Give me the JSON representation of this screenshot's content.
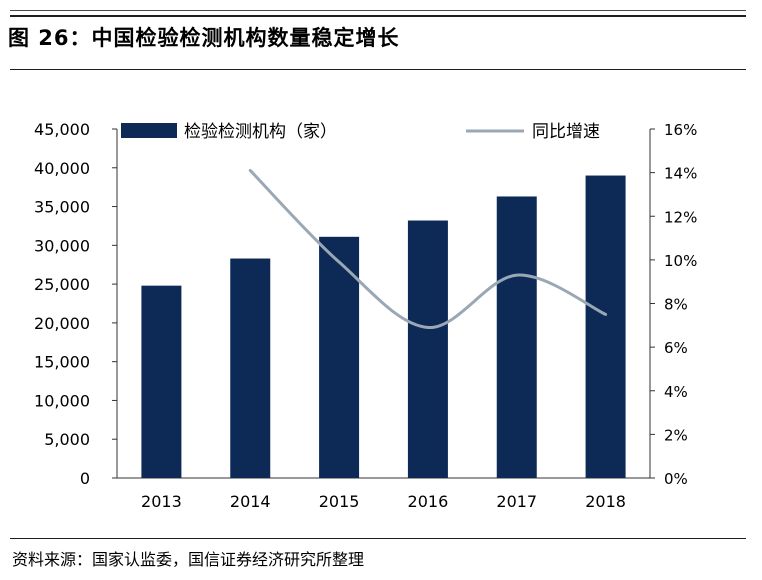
{
  "figure": {
    "title": "图 26：中国检验检测机构数量稳定增长",
    "source": "资料来源：国家认监委，国信证券经济研究所整理"
  },
  "chart_data": {
    "type": "bar",
    "categories": [
      "2013",
      "2014",
      "2015",
      "2016",
      "2017",
      "2018"
    ],
    "series": [
      {
        "name": "检验检测机构（家）",
        "type": "bar",
        "axis": "left",
        "color": "#0d2a57",
        "values": [
          24800,
          28300,
          31100,
          33200,
          36300,
          39000
        ]
      },
      {
        "name": "同比增速",
        "type": "line",
        "axis": "right",
        "color": "#9aa8b6",
        "values": [
          null,
          14.1,
          9.9,
          6.9,
          9.3,
          7.5
        ]
      }
    ],
    "y_left": {
      "min": 0,
      "max": 45000,
      "step": 5000,
      "tick_labels": [
        "0",
        "5,000",
        "10,000",
        "15,000",
        "20,000",
        "25,000",
        "30,000",
        "35,000",
        "40,000",
        "45,000"
      ]
    },
    "y_right": {
      "min": 0,
      "max": 16,
      "step": 2,
      "tick_labels": [
        "0%",
        "2%",
        "4%",
        "6%",
        "8%",
        "10%",
        "12%",
        "14%",
        "16%"
      ]
    },
    "grid": false,
    "legend_position": "top"
  }
}
